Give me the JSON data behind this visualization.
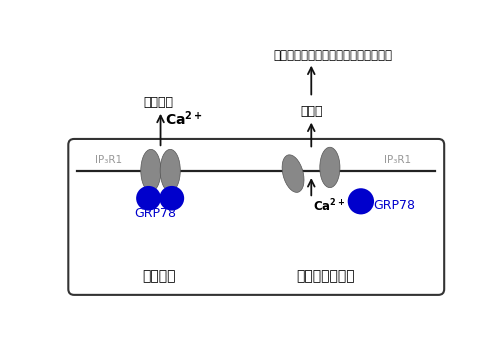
{
  "bg_color": "#ffffff",
  "box_color": "#ffffff",
  "box_edge_color": "#333333",
  "membrane_color": "#222222",
  "ip3r_color": "#888888",
  "grp78_color": "#0000cc",
  "arrow_color": "#111111",
  "blue_label_color": "#0000cc",
  "gray_label_color": "#999999",
  "figsize": [
    5.0,
    3.43
  ],
  "dpi": 100,
  "title_text": "神経変性疾患（ハンチントン病など）",
  "label_normal": "通常状態",
  "label_stress": "小胞体ストレス",
  "label_ip3r1": "IP₃R1",
  "label_grp78": "GRP78",
  "label_response": "細胞応答",
  "label_death": "細胞死",
  "label_ca": "Ca²⁺"
}
